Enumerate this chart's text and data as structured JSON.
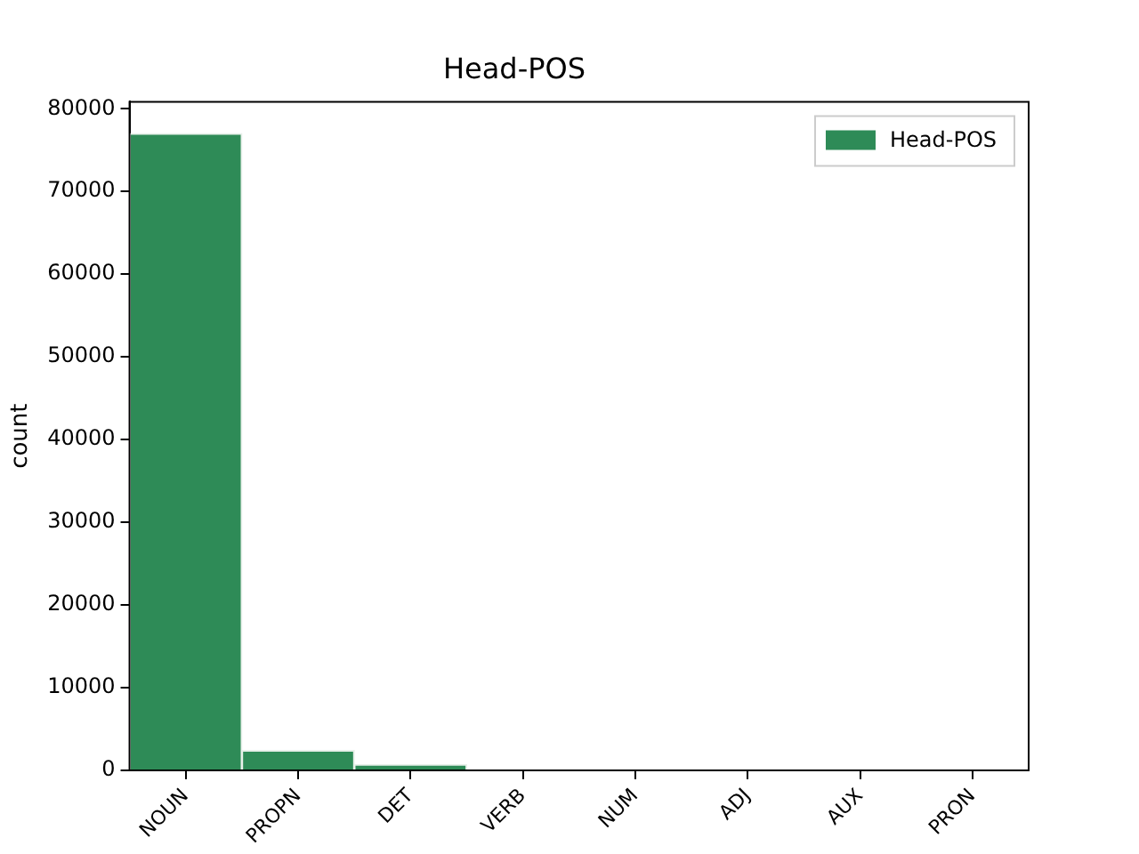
{
  "chart_data": {
    "type": "bar",
    "title": "Head-POS",
    "ylabel": "count",
    "categories": [
      "NOUN",
      "PROPN",
      "DET",
      "VERB",
      "NUM",
      "ADJ",
      "AUX",
      "PRON"
    ],
    "series": [
      {
        "name": "Head-POS",
        "color": "#2e8b57",
        "values": [
          77000,
          2400,
          700,
          0,
          0,
          0,
          0,
          0
        ]
      }
    ],
    "ylim": [
      0,
      80850
    ],
    "yticks": [
      0,
      10000,
      20000,
      30000,
      40000,
      50000,
      60000,
      70000,
      80000
    ],
    "grid": false,
    "legend": "top right"
  }
}
